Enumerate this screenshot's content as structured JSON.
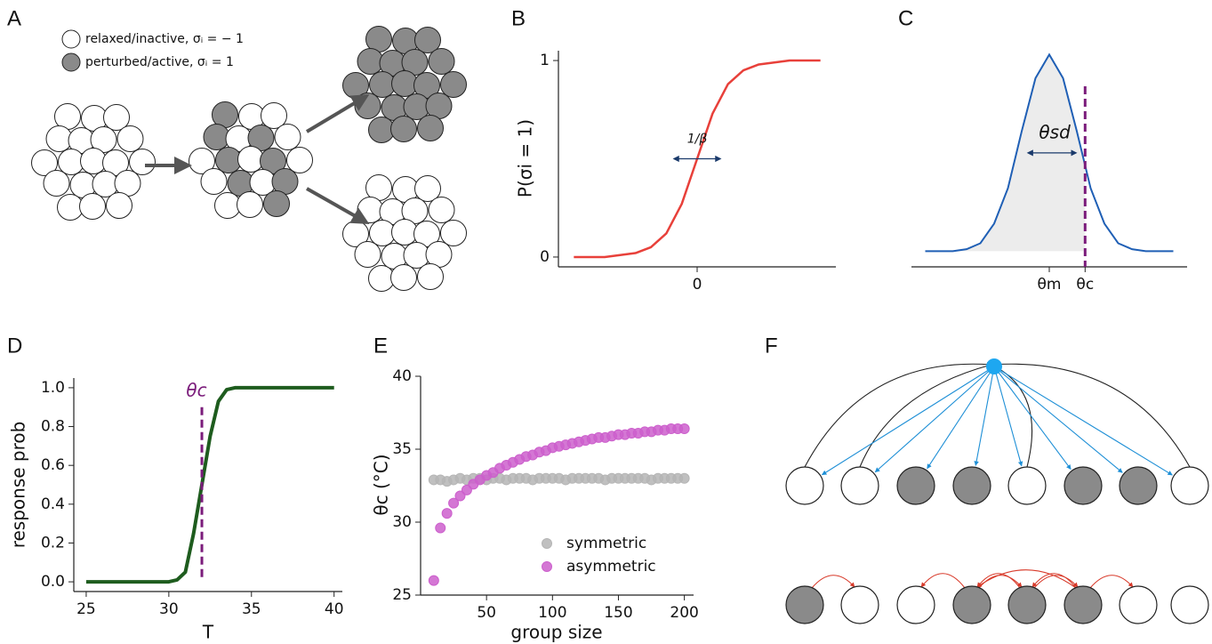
{
  "panel_labels": [
    "A",
    "B",
    "C",
    "D",
    "E",
    "F"
  ],
  "diagram_a": {
    "legend": [
      "relaxed/inactive, σᵢ = − 1",
      "perturbed/active, σᵢ = 1"
    ]
  },
  "chart_data": [
    {
      "type": "line",
      "ylabel": "P(σi = 1)",
      "annotation": "1/β",
      "color": "#e8403a",
      "x": [
        -4,
        -3.5,
        -3,
        -2.5,
        -2,
        -1.5,
        -1,
        -0.5,
        0,
        0.5,
        1,
        1.5,
        2,
        2.5,
        3,
        3.5,
        4
      ],
      "values": [
        0,
        0,
        0,
        0.01,
        0.02,
        0.05,
        0.12,
        0.27,
        0.5,
        0.73,
        0.88,
        0.95,
        0.98,
        0.99,
        1,
        1,
        1
      ],
      "xlim": [
        -4.5,
        4.5
      ],
      "ylim": [
        -0.05,
        1.05
      ],
      "xticks": [
        0
      ],
      "yticks": [
        0,
        1
      ]
    },
    {
      "type": "area",
      "annotation": "θsd",
      "color": "#1f5fb5",
      "threshold": 1.3,
      "x": [
        -4.5,
        -4,
        -3.5,
        -3,
        -2.5,
        -2,
        -1.5,
        -1,
        -0.5,
        0,
        0.5,
        1,
        1.5,
        2,
        2.5,
        3,
        3.5,
        4,
        4.5
      ],
      "values": [
        0,
        0,
        0,
        0.01,
        0.04,
        0.14,
        0.32,
        0.61,
        0.88,
        1,
        0.88,
        0.61,
        0.32,
        0.14,
        0.04,
        0.01,
        0,
        0,
        0
      ],
      "xlim": [
        -5,
        5
      ],
      "ylim": [
        -0.08,
        1.02
      ],
      "xticks": [
        {
          "value": 0,
          "label": "θm"
        },
        {
          "value": 1.3,
          "label": "θc"
        }
      ]
    },
    {
      "type": "line",
      "xlabel": "T",
      "ylabel": "response prob",
      "annotation": "θc",
      "color": "#1e5c1e",
      "threshold": 32,
      "x": [
        25,
        25.5,
        26,
        26.5,
        27,
        27.5,
        28,
        28.5,
        29,
        29.5,
        30,
        30.5,
        31,
        31.5,
        32,
        32.5,
        33,
        33.5,
        34,
        34.5,
        35,
        35.5,
        36,
        36.5,
        37,
        37.5,
        38,
        38.5,
        39,
        39.5,
        40
      ],
      "values": [
        0,
        0,
        0,
        0,
        0,
        0,
        0,
        0,
        0,
        0,
        0,
        0.01,
        0.05,
        0.25,
        0.5,
        0.75,
        0.93,
        0.99,
        1,
        1,
        1,
        1,
        1,
        1,
        1,
        1,
        1,
        1,
        1,
        1,
        1
      ],
      "xlim": [
        24.25,
        40.5
      ],
      "ylim": [
        -0.05,
        1.05
      ],
      "xticks": [
        25,
        30,
        35,
        40
      ],
      "yticks": [
        {
          "value": 0,
          "label": "0.0"
        },
        0.2,
        0.4,
        0.6,
        0.8,
        {
          "value": 1,
          "label": "1.0"
        }
      ]
    },
    {
      "type": "scatter",
      "xlabel": "group size",
      "ylabel": "θc (°C)",
      "legend": "lower right",
      "x": [
        10,
        15,
        20,
        25,
        30,
        35,
        40,
        45,
        50,
        55,
        60,
        65,
        70,
        75,
        80,
        85,
        90,
        95,
        100,
        105,
        110,
        115,
        120,
        125,
        130,
        135,
        140,
        145,
        150,
        155,
        160,
        165,
        170,
        175,
        180,
        185,
        190,
        195,
        200
      ],
      "series": [
        {
          "name": "symmetric",
          "color": "#b5b5b5",
          "values": [
            32.9,
            32.9,
            32.8,
            32.9,
            33,
            32.9,
            33,
            33,
            32.9,
            33,
            33,
            32.9,
            33,
            33,
            33,
            32.9,
            33,
            33,
            33,
            33,
            32.9,
            33,
            33,
            33,
            33,
            33,
            32.9,
            33,
            33,
            33,
            33,
            33,
            33,
            32.9,
            33,
            33,
            33,
            33,
            33
          ]
        },
        {
          "name": "asymmetric",
          "color": "#cc5fcc",
          "values": [
            26,
            29.6,
            30.6,
            31.3,
            31.8,
            32.2,
            32.6,
            32.9,
            33.2,
            33.4,
            33.7,
            33.9,
            34.1,
            34.3,
            34.5,
            34.6,
            34.8,
            34.9,
            35.1,
            35.2,
            35.3,
            35.4,
            35.5,
            35.6,
            35.7,
            35.8,
            35.8,
            35.9,
            36,
            36,
            36.1,
            36.1,
            36.2,
            36.2,
            36.3,
            36.3,
            36.4,
            36.4,
            36.4
          ]
        }
      ],
      "xlim": [
        0,
        207
      ],
      "ylim": [
        25,
        40
      ],
      "xticks": [
        50,
        100,
        150,
        200
      ],
      "yticks": [
        25,
        30,
        35,
        40
      ]
    }
  ]
}
